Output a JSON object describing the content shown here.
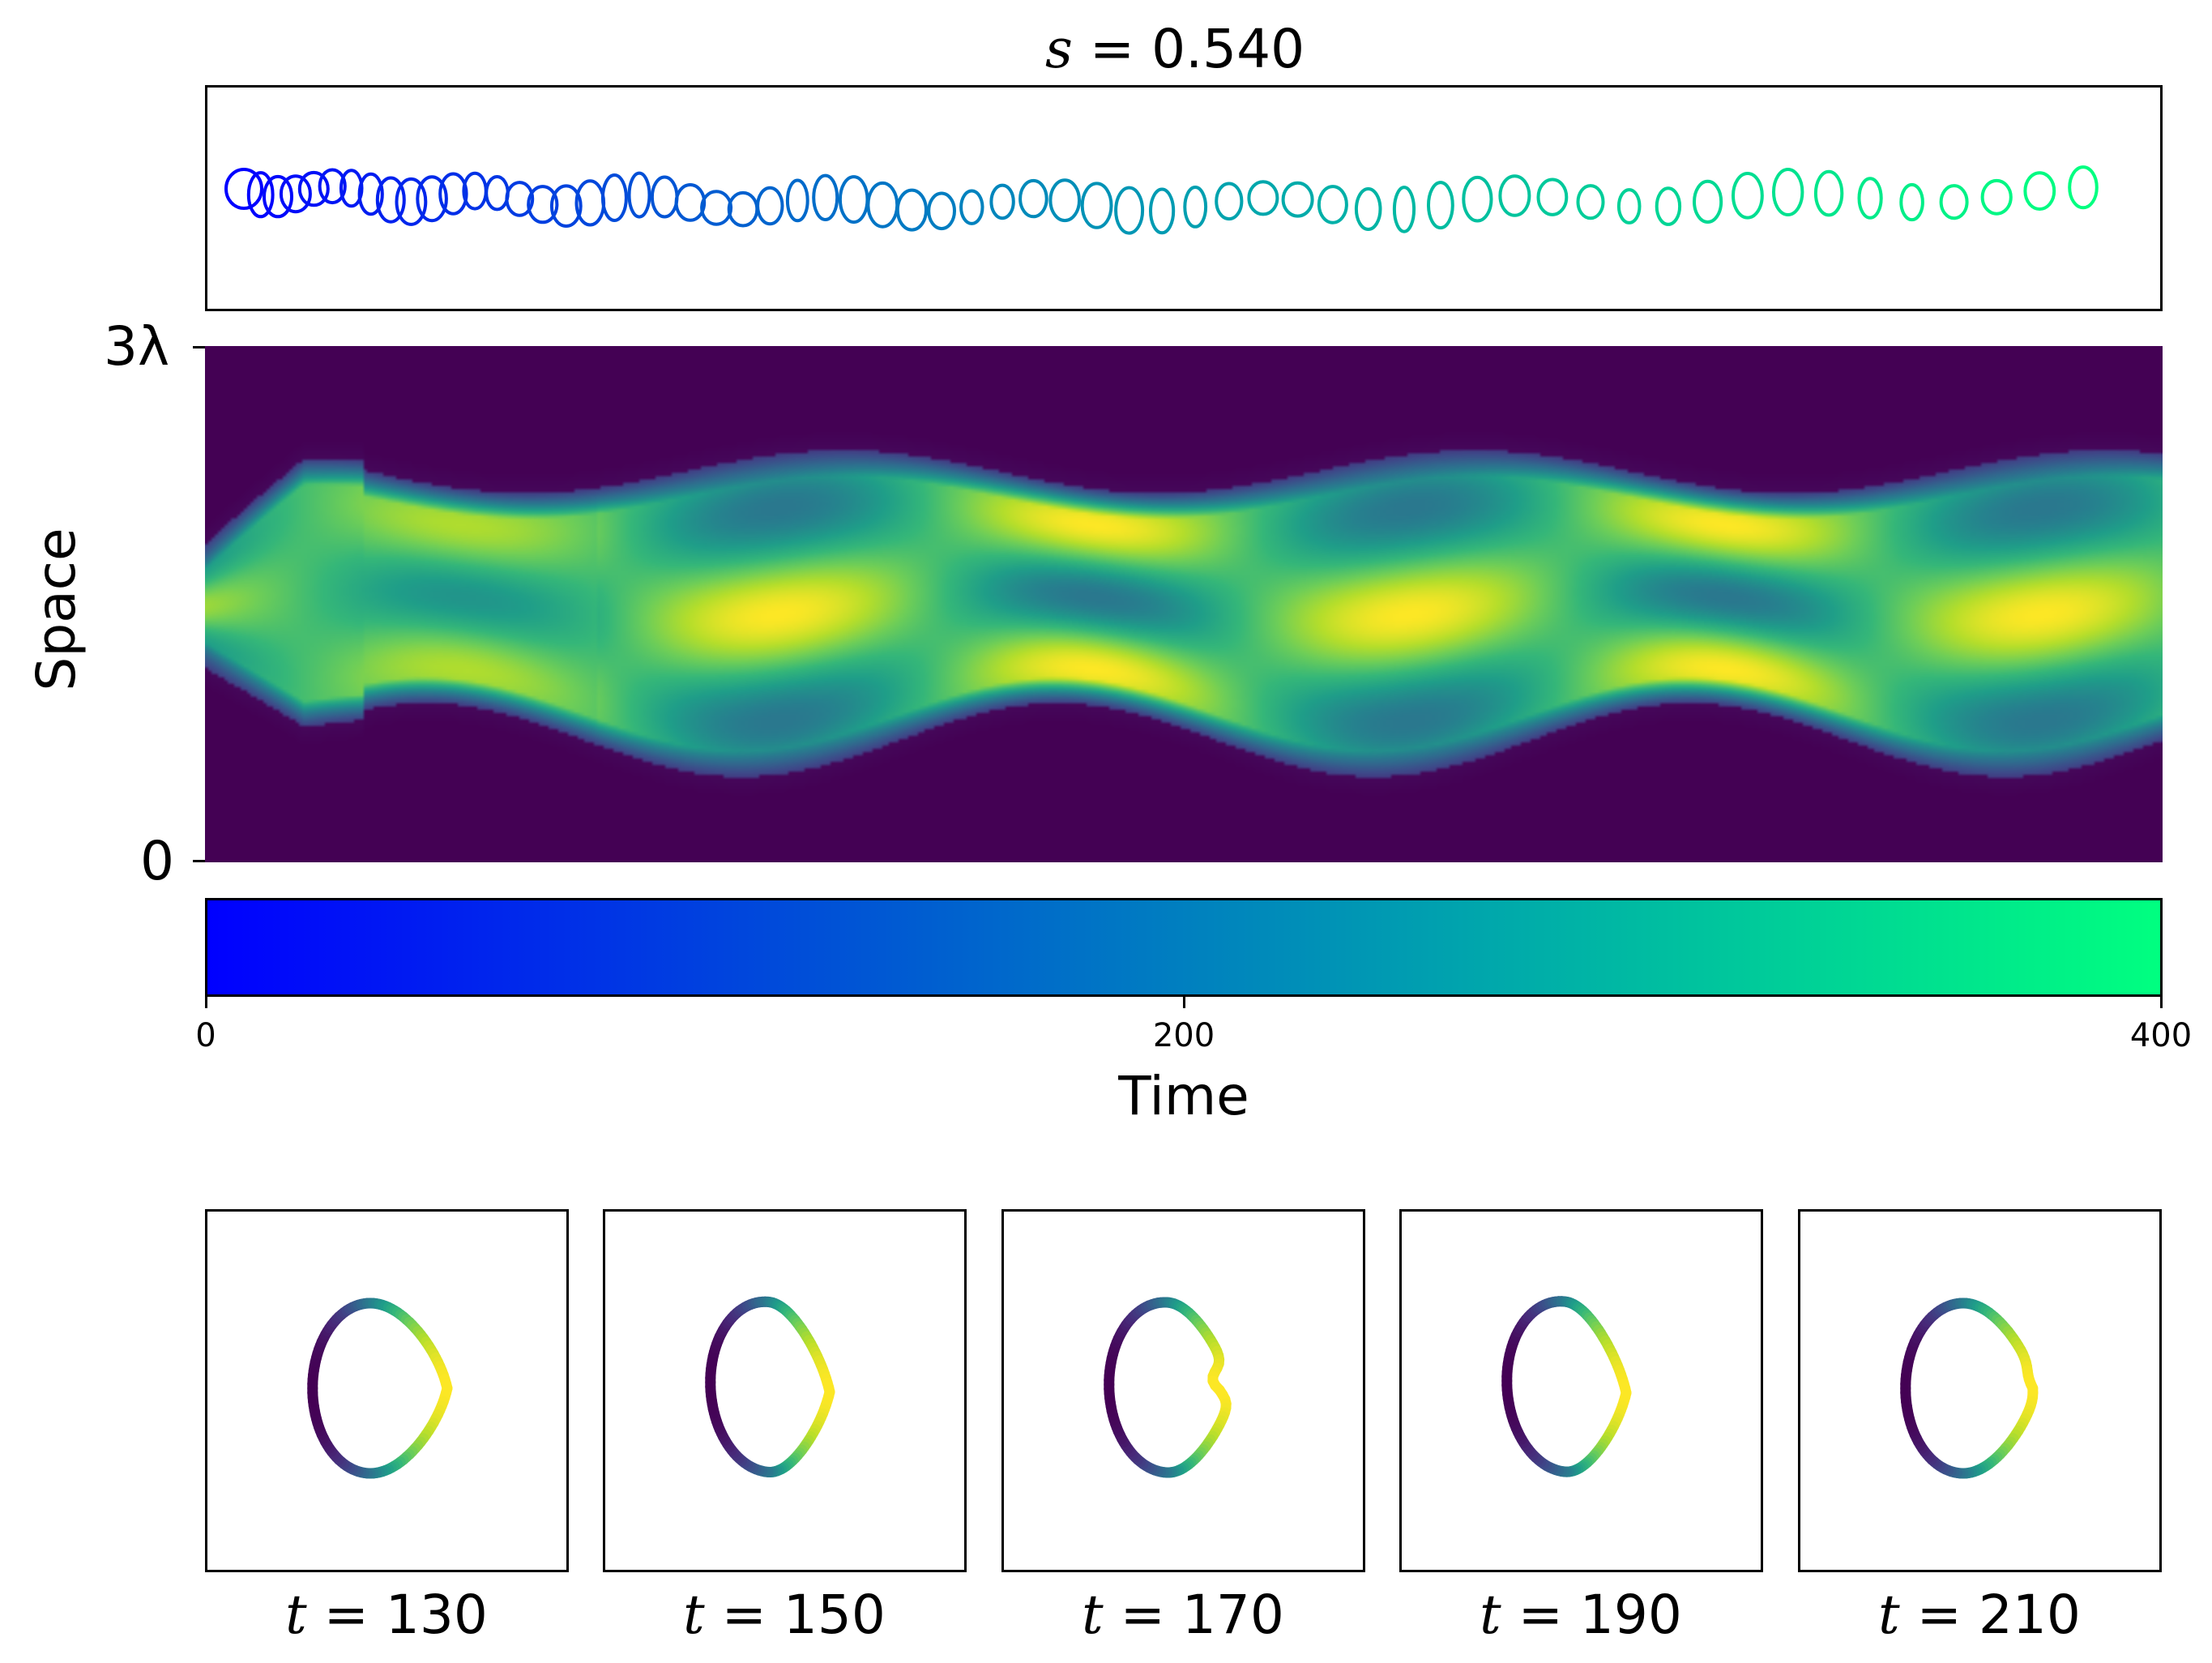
{
  "figure": {
    "title_var": "s",
    "title_eq": " = ",
    "title_val": "0.540"
  },
  "space_axis": {
    "label": "Space",
    "ticks": [
      "0",
      "3λ"
    ]
  },
  "time_axis": {
    "label": "Time",
    "ticks": [
      "0",
      "200",
      "400"
    ],
    "range": [
      0,
      400
    ]
  },
  "colors": {
    "winter_start": "#0000ff",
    "winter_end": "#00ff80",
    "viridis": [
      "#440154",
      "#482878",
      "#3e4989",
      "#31688e",
      "#26828e",
      "#1f9e89",
      "#35b779",
      "#6ece58",
      "#b5de2b",
      "#fde725"
    ]
  },
  "snapshots": [
    {
      "var": "t",
      "eq": " = ",
      "val": "130"
    },
    {
      "var": "t",
      "eq": " = ",
      "val": "150"
    },
    {
      "var": "t",
      "eq": " = ",
      "val": "170"
    },
    {
      "var": "t",
      "eq": " = ",
      "val": "190"
    },
    {
      "var": "t",
      "eq": " = ",
      "val": "210"
    }
  ],
  "chart_data": [
    {
      "type": "line",
      "description_kind": "cell outline trajectory colored by time",
      "x_range": [
        0,
        400
      ],
      "grid": false
    },
    {
      "type": "heatmap",
      "xlabel": "",
      "ylabel": "Space",
      "y_ticks": [
        "0",
        "3λ"
      ],
      "colormap": "viridis"
    },
    {
      "type": "heatmap",
      "role": "colorbar",
      "xlabel": "Time",
      "x_ticks": [
        0,
        200,
        400
      ],
      "colormap": "winter"
    }
  ]
}
